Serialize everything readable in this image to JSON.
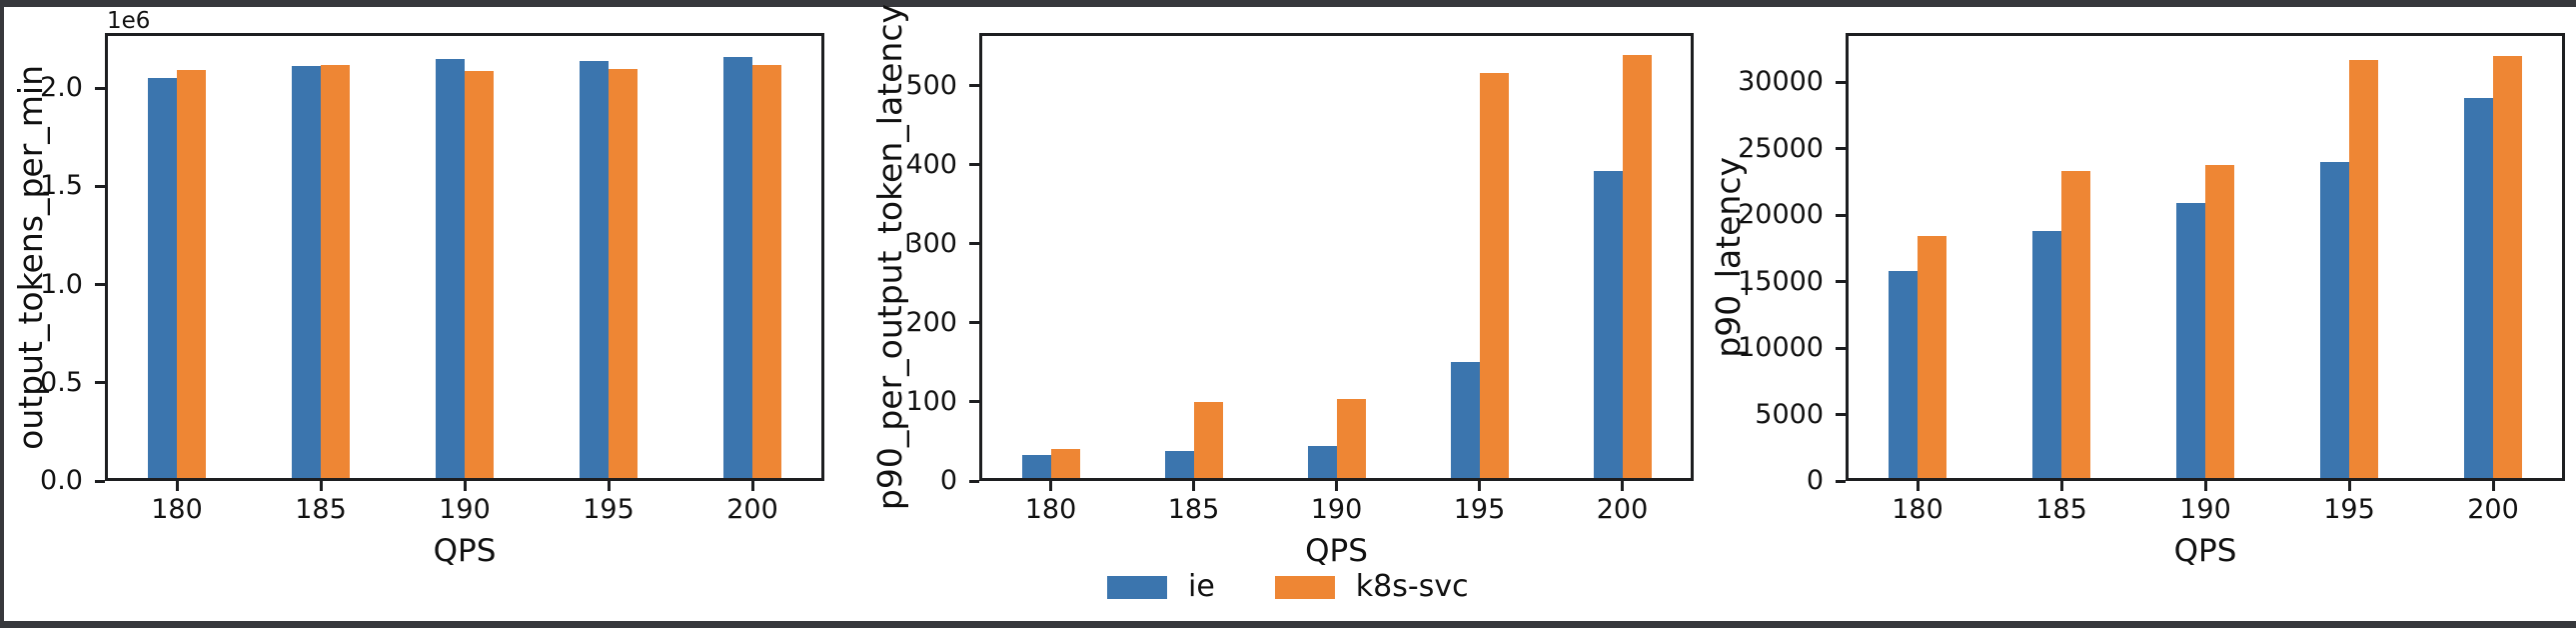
{
  "figure": {
    "background": "#ffffff",
    "border_color": "#37383c"
  },
  "legend": {
    "items": [
      {
        "label": "ie",
        "color": "#3B75AE"
      },
      {
        "label": "k8s-svc",
        "color": "#EE8634"
      }
    ],
    "position": "bottom-center"
  },
  "chart_data": [
    {
      "type": "bar",
      "title": "",
      "ylabel": "output_tokens_per_min",
      "xlabel": "QPS",
      "y_offset_text": "1e6",
      "categories": [
        "180",
        "185",
        "190",
        "195",
        "200"
      ],
      "series": [
        {
          "name": "ie",
          "color": "#3B75AE",
          "values": [
            2050000,
            2110000,
            2150000,
            2140000,
            2160000
          ]
        },
        {
          "name": "k8s-svc",
          "color": "#EE8634",
          "values": [
            2090000,
            2115000,
            2085000,
            2095000,
            2115000
          ]
        }
      ],
      "ylim": [
        0,
        2280000
      ],
      "yticks": [
        {
          "value": 0,
          "label": "0.0"
        },
        {
          "value": 500000,
          "label": "0.5"
        },
        {
          "value": 1000000,
          "label": "1.0"
        },
        {
          "value": 1500000,
          "label": "1.5"
        },
        {
          "value": 2000000,
          "label": "2.0"
        }
      ],
      "grid": false
    },
    {
      "type": "bar",
      "title": "",
      "ylabel": "p90_per_output_token_latency",
      "xlabel": "QPS",
      "y_offset_text": "",
      "categories": [
        "180",
        "185",
        "190",
        "195",
        "200"
      ],
      "series": [
        {
          "name": "ie",
          "color": "#3B75AE",
          "values": [
            33,
            38,
            44,
            150,
            392
          ]
        },
        {
          "name": "k8s-svc",
          "color": "#EE8634",
          "values": [
            40,
            100,
            104,
            517,
            539
          ]
        }
      ],
      "ylim": [
        0,
        567
      ],
      "yticks": [
        {
          "value": 0,
          "label": "0"
        },
        {
          "value": 100,
          "label": "100"
        },
        {
          "value": 200,
          "label": "200"
        },
        {
          "value": 300,
          "label": "300"
        },
        {
          "value": 400,
          "label": "400"
        },
        {
          "value": 500,
          "label": "500"
        }
      ],
      "grid": false
    },
    {
      "type": "bar",
      "title": "",
      "ylabel": "p90_latency",
      "xlabel": "QPS",
      "y_offset_text": "",
      "categories": [
        "180",
        "185",
        "190",
        "195",
        "200"
      ],
      "series": [
        {
          "name": "ie",
          "color": "#3B75AE",
          "values": [
            15800,
            18800,
            20900,
            24000,
            28800
          ]
        },
        {
          "name": "k8s-svc",
          "color": "#EE8634",
          "values": [
            18400,
            23300,
            23800,
            31700,
            32000
          ]
        }
      ],
      "ylim": [
        0,
        33700
      ],
      "yticks": [
        {
          "value": 0,
          "label": "0"
        },
        {
          "value": 5000,
          "label": "5000"
        },
        {
          "value": 10000,
          "label": "10000"
        },
        {
          "value": 15000,
          "label": "15000"
        },
        {
          "value": 20000,
          "label": "20000"
        },
        {
          "value": 25000,
          "label": "25000"
        },
        {
          "value": 30000,
          "label": "30000"
        }
      ],
      "grid": false
    }
  ]
}
